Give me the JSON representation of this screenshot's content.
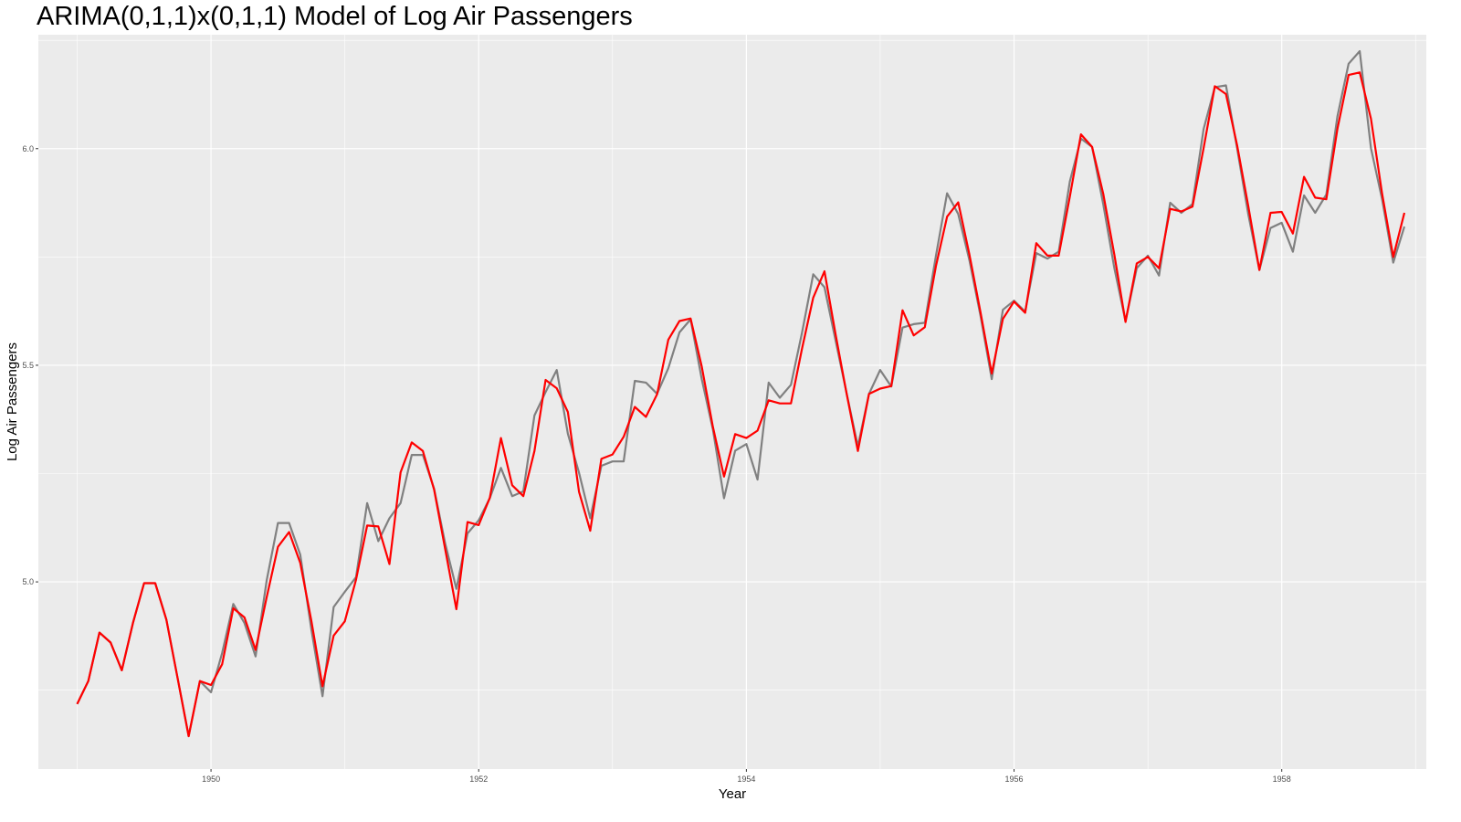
{
  "chart_data": {
    "type": "line",
    "title": "ARIMA(0,1,1)x(0,1,1) Model of Log Air Passengers",
    "xlabel": "Year",
    "ylabel": "Log Air Passengers",
    "xlim": [
      1948.71,
      1959.08
    ],
    "ylim": [
      4.568,
      6.263
    ],
    "x_ticks": [
      1950,
      1952,
      1954,
      1956,
      1958
    ],
    "x_tick_labels": [
      "1950",
      "1952",
      "1954",
      "1956",
      "1958"
    ],
    "y_ticks": [
      5.0,
      5.5,
      6.0
    ],
    "y_tick_labels": [
      "5.0",
      "5.5",
      "6.0"
    ],
    "grid": true,
    "legend": "none",
    "x_start": 1949.0,
    "x_step": 0.08333,
    "series": [
      {
        "color": "#808080",
        "values": [
          4.718,
          4.771,
          4.883,
          4.86,
          4.796,
          4.905,
          4.997,
          4.997,
          4.913,
          4.779,
          4.644,
          4.771,
          4.745,
          4.836,
          4.949,
          4.905,
          4.828,
          5.004,
          5.136,
          5.136,
          5.063,
          4.89,
          4.736,
          4.942,
          4.977,
          5.011,
          5.182,
          5.094,
          5.147,
          5.182,
          5.293,
          5.293,
          5.215,
          5.088,
          4.984,
          5.112,
          5.142,
          5.193,
          5.263,
          5.198,
          5.209,
          5.384,
          5.438,
          5.489,
          5.342,
          5.252,
          5.147,
          5.268,
          5.278,
          5.278,
          5.464,
          5.46,
          5.434,
          5.493,
          5.576,
          5.606,
          5.468,
          5.352,
          5.193,
          5.303,
          5.318,
          5.236,
          5.46,
          5.425,
          5.455,
          5.576,
          5.71,
          5.68,
          5.557,
          5.434,
          5.313,
          5.434,
          5.489,
          5.451,
          5.587,
          5.595,
          5.598,
          5.753,
          5.897,
          5.849,
          5.743,
          5.613,
          5.468,
          5.628,
          5.649,
          5.624,
          5.759,
          5.746,
          5.762,
          5.924,
          6.023,
          6.004,
          5.872,
          5.724,
          5.602,
          5.724,
          5.753,
          5.707,
          5.875,
          5.852,
          5.872,
          6.045,
          6.142,
          6.146,
          6.001,
          5.849,
          5.72,
          5.817,
          5.829,
          5.762,
          5.892,
          5.852,
          5.894,
          6.075,
          6.196,
          6.225,
          6.001,
          5.883,
          5.737,
          5.82
        ]
      },
      {
        "color": "#ff0000",
        "values": [
          4.718,
          4.771,
          4.883,
          4.86,
          4.796,
          4.905,
          4.997,
          4.997,
          4.913,
          4.779,
          4.644,
          4.771,
          4.762,
          4.81,
          4.939,
          4.918,
          4.843,
          4.965,
          5.081,
          5.115,
          5.044,
          4.91,
          4.759,
          4.876,
          4.909,
          5.005,
          5.13,
          5.128,
          5.041,
          5.253,
          5.322,
          5.302,
          5.213,
          5.075,
          4.937,
          5.138,
          5.131,
          5.194,
          5.332,
          5.223,
          5.198,
          5.302,
          5.466,
          5.447,
          5.392,
          5.208,
          5.118,
          5.284,
          5.294,
          5.335,
          5.404,
          5.381,
          5.433,
          5.559,
          5.602,
          5.608,
          5.497,
          5.358,
          5.243,
          5.341,
          5.332,
          5.349,
          5.419,
          5.412,
          5.412,
          5.539,
          5.656,
          5.717,
          5.571,
          5.433,
          5.302,
          5.434,
          5.446,
          5.452,
          5.627,
          5.569,
          5.588,
          5.729,
          5.843,
          5.876,
          5.756,
          5.621,
          5.481,
          5.607,
          5.647,
          5.621,
          5.782,
          5.753,
          5.753,
          5.889,
          6.033,
          6.004,
          5.896,
          5.755,
          5.6,
          5.735,
          5.75,
          5.724,
          5.861,
          5.855,
          5.866,
          6.001,
          6.144,
          6.126,
          6.008,
          5.868,
          5.72,
          5.852,
          5.854,
          5.804,
          5.935,
          5.887,
          5.883,
          6.046,
          6.17,
          6.176,
          6.069,
          5.896,
          5.75,
          5.852
        ]
      }
    ]
  }
}
